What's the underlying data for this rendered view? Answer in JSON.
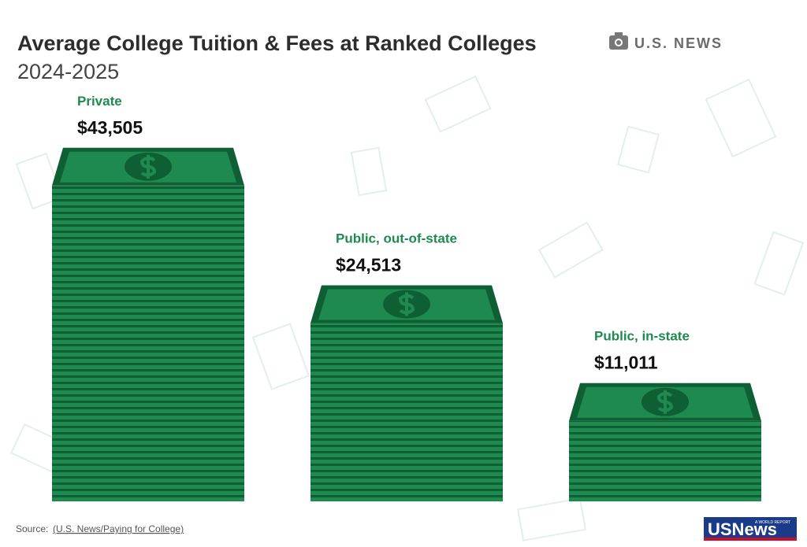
{
  "chart_data": {
    "type": "stack",
    "title": "Average College Tuition & Fees at Ranked Colleges",
    "subtitle": "2024-2025",
    "brand": "U.S. NEWS",
    "categories": [
      "Private",
      "Public, out-of-state",
      "Public, in-state"
    ],
    "values": [
      43505,
      24513,
      11011
    ],
    "value_labels": [
      "$43,505",
      "$24,513",
      "$11,011"
    ],
    "color": "#1f8a50",
    "label_color": "#1f8a50",
    "source_label": "Source:",
    "source_link": "(U.S. News/Paying for College)",
    "logo": "USNews",
    "logo_tagline": "A WORLD REPORT"
  }
}
